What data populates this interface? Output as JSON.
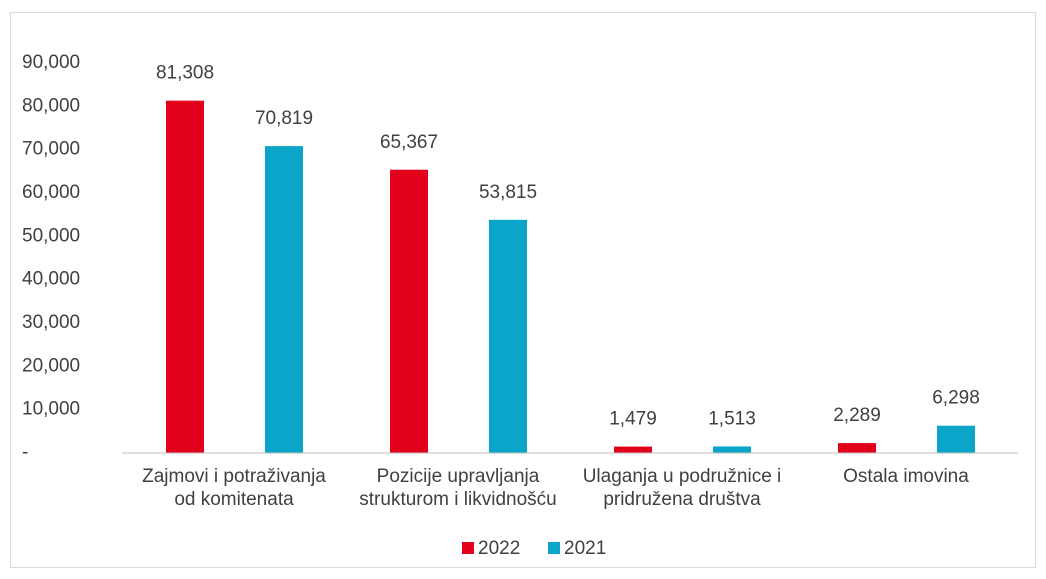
{
  "chart_data": {
    "type": "bar",
    "categories": [
      "Zajmovi i potraživanja od komitenata",
      "Pozicije upravljanja strukturom i likvidnošću",
      "Ulaganja u podružnice i pridružena društva",
      "Ostala imovina"
    ],
    "series": [
      {
        "name": "2022",
        "color": "#e2001a",
        "values": [
          81308,
          65367,
          1479,
          2289
        ],
        "value_labels": [
          "81,308",
          "65,367",
          "1,479",
          "2,289"
        ]
      },
      {
        "name": "2021",
        "color": "#0aa5c9",
        "values": [
          70819,
          53815,
          1513,
          6298
        ],
        "value_labels": [
          "70,819",
          "53,815",
          "1,513",
          "6,298"
        ]
      }
    ],
    "ylim": [
      0,
      90000
    ],
    "yticks": [
      {
        "value": 0,
        "label": "-"
      },
      {
        "value": 10000,
        "label": "10,000"
      },
      {
        "value": 20000,
        "label": "20,000"
      },
      {
        "value": 30000,
        "label": "30,000"
      },
      {
        "value": 40000,
        "label": "40,000"
      },
      {
        "value": 50000,
        "label": "50,000"
      },
      {
        "value": 60000,
        "label": "60,000"
      },
      {
        "value": 70000,
        "label": "70,000"
      },
      {
        "value": 80000,
        "label": "80,000"
      },
      {
        "value": 90000,
        "label": "90,000"
      }
    ],
    "legend": "bottom"
  }
}
